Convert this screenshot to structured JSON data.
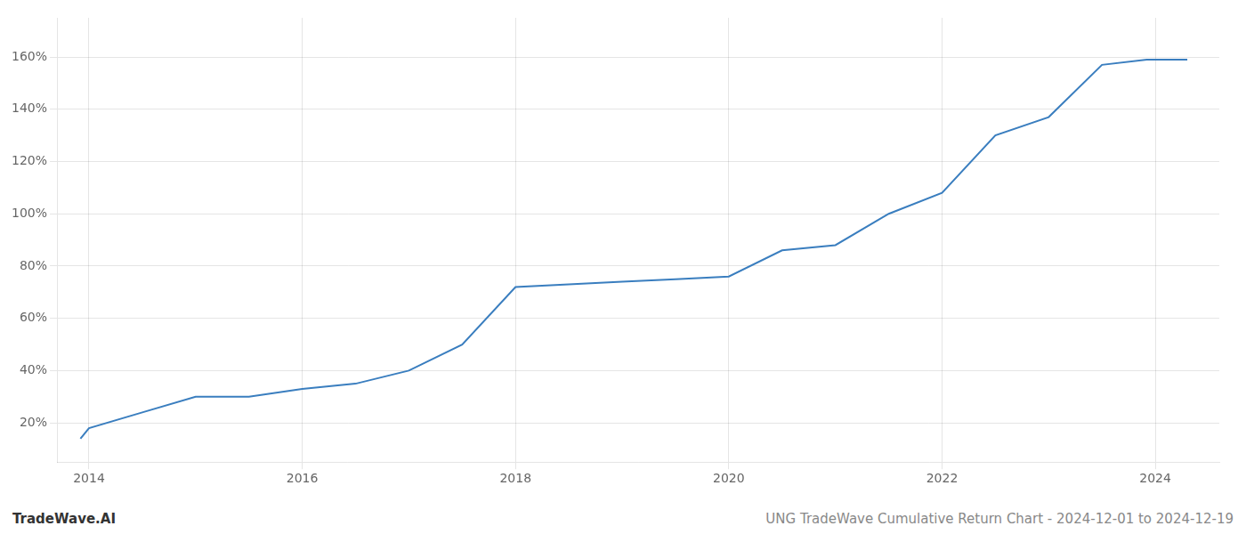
{
  "chart_data": {
    "type": "line",
    "x": [
      2013.92,
      2014.0,
      2014.5,
      2015.0,
      2015.5,
      2016.0,
      2016.5,
      2017.0,
      2017.5,
      2018.0,
      2018.5,
      2019.0,
      2019.5,
      2020.0,
      2020.5,
      2021.0,
      2021.5,
      2022.0,
      2022.5,
      2023.0,
      2023.5,
      2023.92,
      2024.0,
      2024.3
    ],
    "values": [
      14,
      18,
      24,
      30,
      30,
      33,
      35,
      40,
      50,
      72,
      73,
      74,
      75,
      76,
      86,
      88,
      100,
      108,
      130,
      137,
      157,
      159,
      159,
      159
    ],
    "color": "#3a7ebf",
    "xlim": [
      2013.7,
      2024.6
    ],
    "ylim": [
      5,
      175
    ],
    "xticks": [
      2014,
      2016,
      2018,
      2020,
      2022,
      2024
    ],
    "yticks": [
      {
        "value": 20,
        "label": "20%"
      },
      {
        "value": 40,
        "label": "40%"
      },
      {
        "value": 60,
        "label": "60%"
      },
      {
        "value": 80,
        "label": "80%"
      },
      {
        "value": 100,
        "label": "100%"
      },
      {
        "value": 120,
        "label": "120%"
      },
      {
        "value": 140,
        "label": "140%"
      },
      {
        "value": 160,
        "label": "160%"
      }
    ],
    "grid": true,
    "annotations": [
      "TradeWave.AI",
      "UNG TradeWave Cumulative Return Chart - 2024-12-01 to 2024-12-19"
    ]
  }
}
